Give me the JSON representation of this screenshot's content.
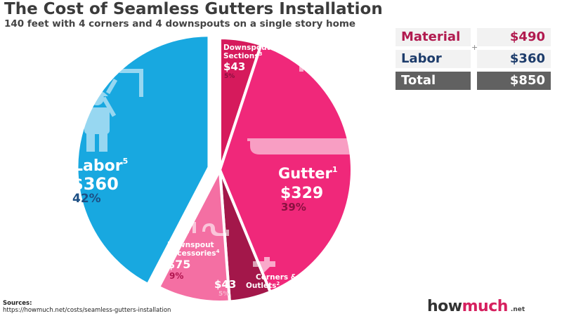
{
  "title": "The Cost of Seamless Gutters Installation",
  "subtitle": "140 feet with 4 corners and 4 downspouts on a single story home",
  "summary": {
    "material_label": "Material",
    "material_value": "$490",
    "labor_label": "Labor",
    "labor_value": "$360",
    "total_label": "Total",
    "total_value": "$850",
    "plus_sign": "+"
  },
  "sources": {
    "label": "Sources:",
    "url": "https://howmuch.net/costs/seamless-gutters-installation"
  },
  "brand": {
    "main": "how",
    "accent": "much",
    "tld": ".net"
  },
  "chart_data": {
    "type": "pie",
    "title": "The Cost of Seamless Gutters Installation",
    "subtitle": "140 feet with 4 corners and 4 downspouts on a single story home",
    "slices": [
      {
        "label": "Labor",
        "note": "5",
        "value": 360,
        "value_label": "$360",
        "percent": 42,
        "percent_label": "42%",
        "color": "#18a8e0",
        "exploded": true
      },
      {
        "label": "Downspout Sections",
        "note": "3",
        "value": 43,
        "value_label": "$43",
        "percent": 5,
        "percent_label": "5%",
        "color": "#d61a5c"
      },
      {
        "label": "Gutter",
        "note": "1",
        "value": 329,
        "value_label": "$329",
        "percent": 39,
        "percent_label": "39%",
        "color": "#f0287a"
      },
      {
        "label": "Corners & Outlets",
        "note": "2",
        "value": 43,
        "value_label": "$43",
        "percent": 5,
        "percent_label": "5%",
        "color": "#a3174a"
      },
      {
        "label": "Downspout Accessories",
        "note": "4",
        "value": 75,
        "value_label": "$75",
        "percent": 9,
        "percent_label": "9%",
        "color": "#f46fa3"
      }
    ],
    "total": 850
  }
}
